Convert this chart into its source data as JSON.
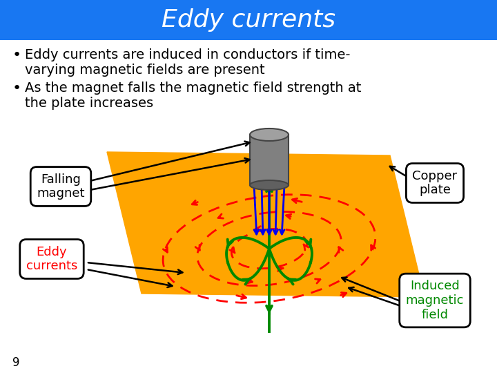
{
  "title": "Eddy currents",
  "title_bg": "#1877F2",
  "title_color": "#FFFFFF",
  "bg_color": "#FFFFFF",
  "bullet1_line1": "Eddy currents are induced in conductors if time-",
  "bullet1_line2": "varying magnetic fields are present",
  "bullet2_line1": "As the magnet falls the magnetic field strength at",
  "bullet2_line2": "the plate increases",
  "label_falling": "Falling\nmagnet",
  "label_copper": "Copper\nplate",
  "label_eddy": "Eddy\ncurrents",
  "label_induced": "Induced\nmagnetic\nfield",
  "page_number": "9",
  "orange_color": "#FFA500",
  "red_color": "#FF0000",
  "green_color": "#008800",
  "blue_color": "#0000EE",
  "magnet_gray_body": "#808080",
  "magnet_gray_top": "#A0A0A0",
  "magnet_gray_bottom": "#606060"
}
